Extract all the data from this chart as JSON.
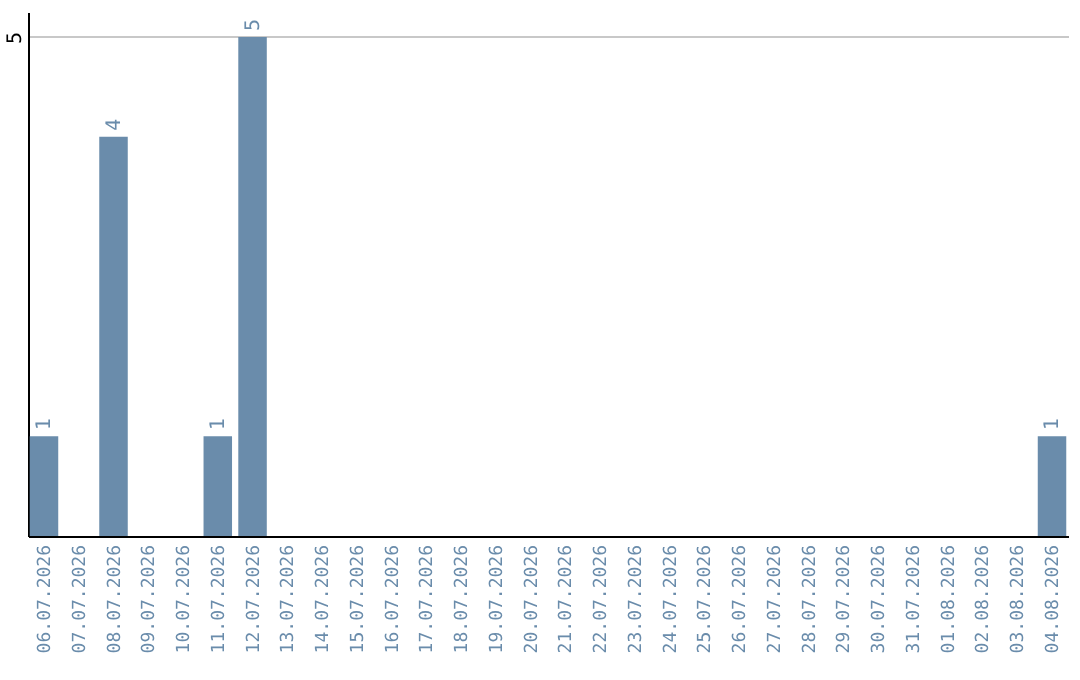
{
  "chart_data": {
    "type": "bar",
    "categories": [
      "06.07.2026",
      "07.07.2026",
      "08.07.2026",
      "09.07.2026",
      "10.07.2026",
      "11.07.2026",
      "12.07.2026",
      "13.07.2026",
      "14.07.2026",
      "15.07.2026",
      "16.07.2026",
      "17.07.2026",
      "18.07.2026",
      "19.07.2026",
      "20.07.2026",
      "21.07.2026",
      "22.07.2026",
      "23.07.2026",
      "24.07.2026",
      "25.07.2026",
      "26.07.2026",
      "27.07.2026",
      "28.07.2026",
      "29.07.2026",
      "30.07.2026",
      "31.07.2026",
      "01.08.2026",
      "02.08.2026",
      "03.08.2026",
      "04.08.2026"
    ],
    "values": [
      1,
      0,
      4,
      0,
      0,
      1,
      5,
      0,
      0,
      0,
      0,
      0,
      0,
      0,
      0,
      0,
      0,
      0,
      0,
      0,
      0,
      0,
      0,
      0,
      0,
      0,
      0,
      0,
      0,
      1
    ],
    "value_labels": [
      "1",
      null,
      "4",
      null,
      null,
      "1",
      "5",
      null,
      null,
      null,
      null,
      null,
      null,
      null,
      null,
      null,
      null,
      null,
      null,
      null,
      null,
      null,
      null,
      null,
      null,
      null,
      null,
      null,
      null,
      "1"
    ],
    "color": "#6a8cab",
    "ylim": [
      0,
      5.25
    ],
    "yticks": [
      5
    ],
    "grid": "y"
  }
}
